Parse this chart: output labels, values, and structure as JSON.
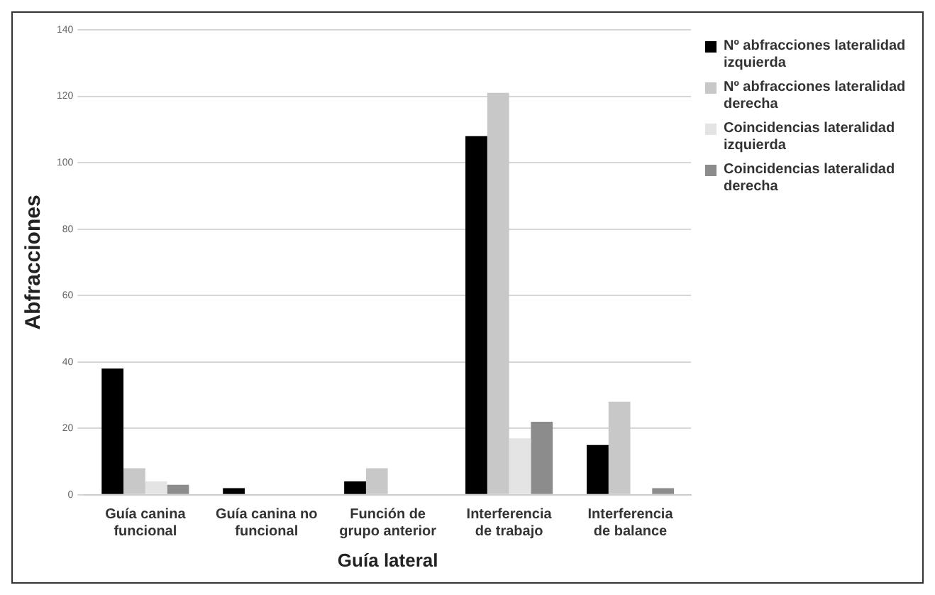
{
  "chart_data": {
    "type": "bar",
    "xlabel": "Guía lateral",
    "ylabel": "Abfracciones",
    "categories": [
      "Guía canina funcional",
      "Guía canina no funcional",
      "Función de grupo anterior",
      "Interferencia de trabajo",
      "Interferencia de balance"
    ],
    "series": [
      {
        "name": "Nº abfracciones lateralidad izquierda",
        "color": "#000000",
        "values": [
          38,
          2,
          4,
          108,
          15
        ]
      },
      {
        "name": "Nº abfracciones lateralidad derecha",
        "color": "#c8c8c8",
        "values": [
          8,
          0,
          8,
          121,
          28
        ]
      },
      {
        "name": "Coincidencias lateralidad izquierda",
        "color": "#e4e4e4",
        "values": [
          4,
          0,
          0,
          17,
          0
        ]
      },
      {
        "name": "Coincidencias lateralidad derecha",
        "color": "#8c8c8c",
        "values": [
          3,
          0,
          0,
          22,
          2
        ]
      }
    ],
    "ylim": [
      0,
      140
    ],
    "yticks": [
      0,
      20,
      40,
      60,
      80,
      100,
      120,
      140
    ],
    "grid": "y",
    "legend": "top right"
  }
}
